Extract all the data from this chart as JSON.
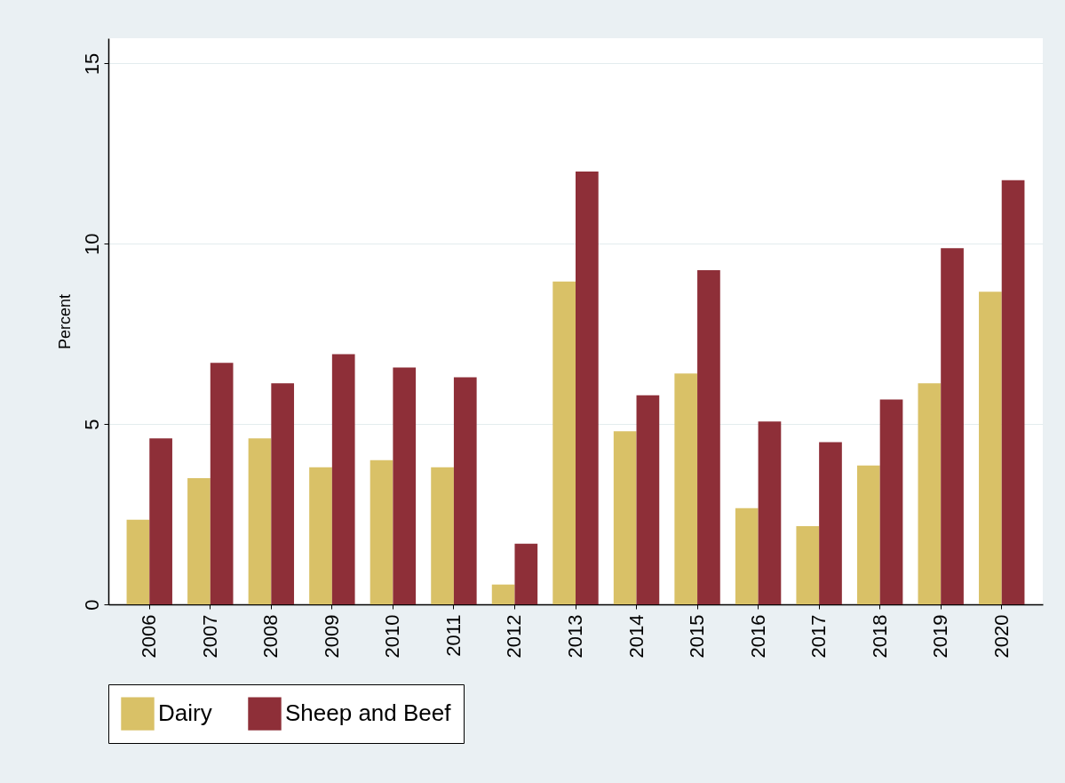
{
  "chart_data": {
    "type": "bar",
    "ylabel": "Percent",
    "categories": [
      "2006",
      "2007",
      "2008",
      "2009",
      "2010",
      "2011",
      "2012",
      "2013",
      "2014",
      "2015",
      "2016",
      "2017",
      "2018",
      "2019",
      "2020"
    ],
    "series": [
      {
        "name": "Dairy",
        "color": "#d9c167",
        "values": [
          2.35,
          3.5,
          4.6,
          3.8,
          4.0,
          3.8,
          0.55,
          8.95,
          4.8,
          6.4,
          2.67,
          2.17,
          3.85,
          6.13,
          8.67
        ]
      },
      {
        "name": "Sheep and Beef",
        "color": "#8e2f38",
        "values": [
          4.6,
          6.7,
          6.13,
          6.94,
          6.57,
          6.3,
          1.68,
          12.0,
          5.8,
          9.27,
          5.07,
          4.5,
          5.68,
          9.88,
          11.76
        ]
      }
    ],
    "ylim": [
      0,
      15.7
    ],
    "yticks": [
      0,
      5,
      10,
      15
    ],
    "grid": "y",
    "legend": "bottom"
  }
}
